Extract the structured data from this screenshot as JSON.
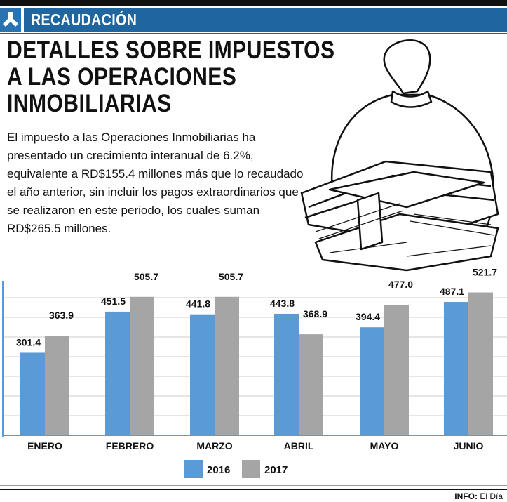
{
  "section": {
    "label": "RECAUDACIÓN",
    "logo_icon": "ministry-logo-icon",
    "color": "#1f66a0"
  },
  "title": {
    "lines": [
      "DETALLES SOBRE IMPUESTOS",
      "A LAS OPERACIONES",
      "INMOBILIARIAS"
    ]
  },
  "body": "El impuesto a las Operaciones Inmobiliarias ha presentado un crecimiento interanual de 6.2%, equivalente a RD$155.4 millones más que lo recaudado el año anterior, sin incluir los pagos extraordinarios que se realizaron en este periodo, los cuales suman RD$265.5 millones.",
  "illustration": "money-bag-and-cash-stacks-icon",
  "chart_data": {
    "type": "bar",
    "categories": [
      "ENERO",
      "FEBRERO",
      "MARZO",
      "ABRIL",
      "MAYO",
      "JUNIO"
    ],
    "series": [
      {
        "name": "2016",
        "color": "#5b9bd5",
        "values": [
          301.4,
          451.5,
          441.8,
          443.8,
          394.4,
          487.1
        ],
        "labels": [
          "301.4",
          "451.5",
          "441.8",
          "443.8",
          "394.4",
          "487.1"
        ]
      },
      {
        "name": "2017",
        "color": "#a5a5a5",
        "values": [
          363.9,
          505.7,
          505.7,
          368.9,
          477.0,
          521.7
        ],
        "labels": [
          "363.9",
          "505.7",
          "505.7",
          "368.9",
          "477.0",
          "521.7"
        ]
      }
    ],
    "grid": true,
    "legend": "bottom"
  },
  "source": {
    "label": "INFO:",
    "value": "El Día"
  }
}
